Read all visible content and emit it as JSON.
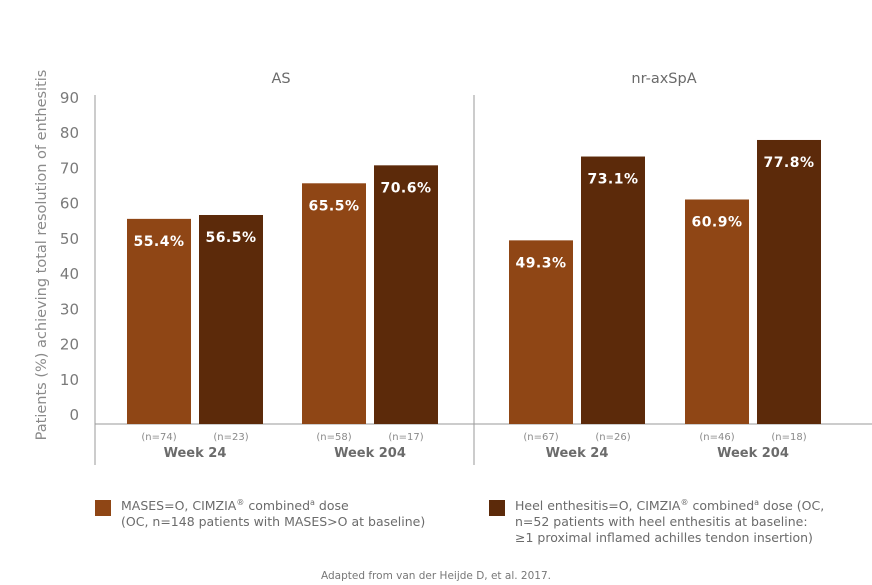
{
  "chart_data": {
    "type": "bar",
    "ylabel": "Patients (%) achieving total resolution of enthesitis",
    "ylim": [
      0,
      90
    ],
    "yticks": [
      90,
      80,
      70,
      60,
      50,
      40,
      30,
      20,
      10,
      0
    ],
    "grid": false,
    "colors": {
      "mases": "#8f4615",
      "heel": "#5c2a0a"
    },
    "panels": [
      {
        "title": "AS",
        "groups": [
          {
            "label": "Week 24",
            "bars": [
              {
                "series": "mases",
                "value": 55.4,
                "label": "55.4%",
                "n": "(n=74)"
              },
              {
                "series": "heel",
                "value": 56.5,
                "label": "56.5%",
                "n": "(n=23)"
              }
            ]
          },
          {
            "label": "Week 204",
            "bars": [
              {
                "series": "mases",
                "value": 65.5,
                "label": "65.5%",
                "n": "(n=58)"
              },
              {
                "series": "heel",
                "value": 70.6,
                "label": "70.6%",
                "n": "(n=17)"
              }
            ]
          }
        ]
      },
      {
        "title": "nr-axSpA",
        "groups": [
          {
            "label": "Week 24",
            "bars": [
              {
                "series": "mases",
                "value": 49.3,
                "label": "49.3%",
                "n": "(n=67)"
              },
              {
                "series": "heel",
                "value": 73.1,
                "label": "73.1%",
                "n": "(n=26)"
              }
            ]
          },
          {
            "label": "Week 204",
            "bars": [
              {
                "series": "mases",
                "value": 60.9,
                "label": "60.9%",
                "n": "(n=46)"
              },
              {
                "series": "heel",
                "value": 77.8,
                "label": "77.8%",
                "n": "(n=18)"
              }
            ]
          }
        ]
      }
    ]
  },
  "legend": {
    "mases": {
      "line1_a": "MASES=O, CIMZIA",
      "line1_reg": "®",
      "line1_b": " combined",
      "line1_sup": "a",
      "line1_c": " dose",
      "line2": "(OC, n=148 patients with MASES>O at baseline)"
    },
    "heel": {
      "line1_a": "Heel enthesitis=O, CIMZIA",
      "line1_reg": "®",
      "line1_b": " combined",
      "line1_sup": "a",
      "line1_c": " dose (OC,",
      "line2": "n=52 patients with heel enthesitis at baseline:",
      "line3": "≥1 proximal inflamed achilles tendon insertion)"
    }
  },
  "footnote": "Adapted from van der Heijde D, et al. 2017."
}
